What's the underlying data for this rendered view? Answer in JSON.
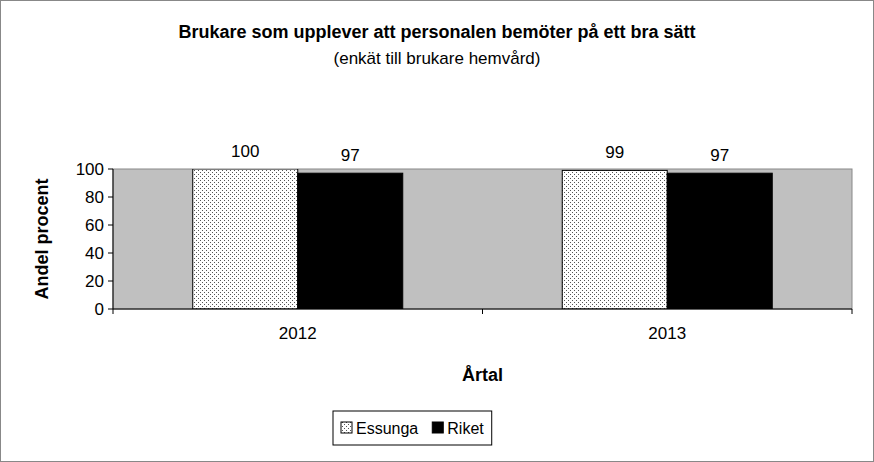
{
  "chart_data": {
    "type": "bar",
    "title": "Brukare som upplever att personalen bemöter på ett bra sätt",
    "subtitle": "(enkät till brukare hemvård)",
    "x_label": "Årtal",
    "y_label": "Andel procent",
    "categories": [
      "2012",
      "2013"
    ],
    "series": [
      {
        "name": "Essunga",
        "color": "#ffffff",
        "values": [
          100,
          99
        ]
      },
      {
        "name": "Riket",
        "color": "#000000",
        "values": [
          97,
          97
        ]
      }
    ],
    "ylim": [
      0,
      100
    ],
    "yticks": [
      0,
      20,
      40,
      60,
      80,
      100
    ],
    "grid": false,
    "data_labels": true,
    "legend": "bottom"
  }
}
